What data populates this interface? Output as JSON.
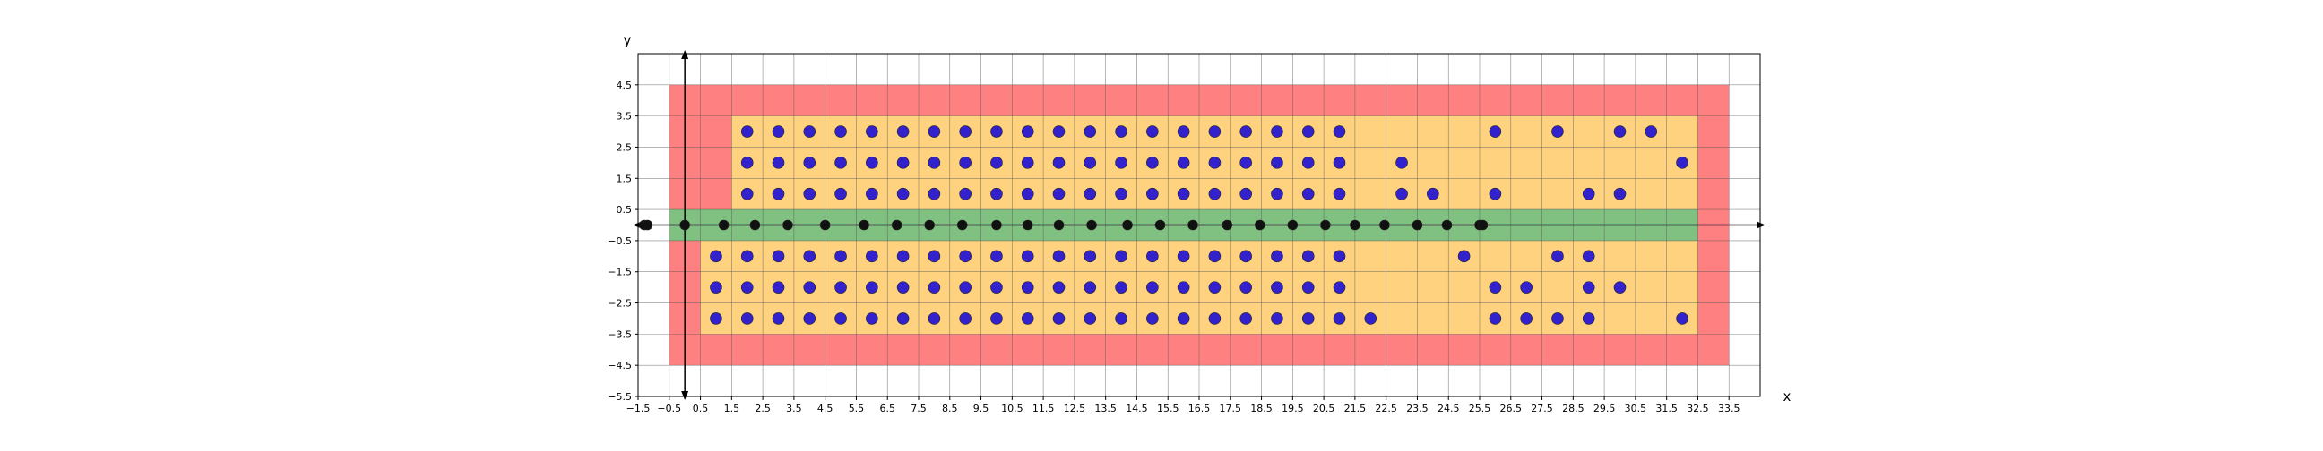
{
  "chart_data": {
    "type": "scatter",
    "title": "",
    "xlabel": "x",
    "ylabel": "y",
    "xlim": [
      -1.5,
      34.5
    ],
    "ylim": [
      -5.5,
      5.5
    ],
    "grid": true,
    "x_ticks": [
      "−1.5",
      "−0.5",
      "0.5",
      "1.5",
      "2.5",
      "3.5",
      "4.5",
      "5.5",
      "6.5",
      "7.5",
      "8.5",
      "9.5",
      "10.5",
      "11.5",
      "12.5",
      "13.5",
      "14.5",
      "15.5",
      "16.5",
      "17.5",
      "18.5",
      "19.5",
      "20.5",
      "21.5",
      "22.5",
      "23.5",
      "24.5",
      "25.5",
      "26.5",
      "27.5",
      "28.5",
      "29.5",
      "30.5",
      "31.5",
      "32.5",
      "33.5"
    ],
    "y_ticks": [
      "4.5",
      "3.5",
      "2.5",
      "1.5",
      "0.5",
      "−0.5",
      "−1.5",
      "−2.5",
      "−3.5",
      "−4.5",
      "−5.5"
    ],
    "regions": [
      {
        "color": "#ff8080",
        "x": [
          -0.5,
          33.5
        ],
        "y": [
          -4.5,
          4.5
        ]
      },
      {
        "color": "#ffd280",
        "x": [
          1.5,
          32.5
        ],
        "y": [
          0.5,
          3.5
        ]
      },
      {
        "color": "#ffd280",
        "x": [
          0.5,
          32.5
        ],
        "y": [
          -3.5,
          -0.5
        ]
      },
      {
        "color": "#80c080",
        "x": [
          -0.5,
          32.5
        ],
        "y": [
          -0.5,
          0.5
        ]
      }
    ],
    "series": [
      {
        "color": "#3322cc",
        "points": [
          [
            2,
            3
          ],
          [
            3,
            3
          ],
          [
            4,
            3
          ],
          [
            5,
            3
          ],
          [
            6,
            3
          ],
          [
            7,
            3
          ],
          [
            8,
            3
          ],
          [
            9,
            3
          ],
          [
            10,
            3
          ],
          [
            11,
            3
          ],
          [
            12,
            3
          ],
          [
            13,
            3
          ],
          [
            14,
            3
          ],
          [
            15,
            3
          ],
          [
            16,
            3
          ],
          [
            17,
            3
          ],
          [
            18,
            3
          ],
          [
            19,
            3
          ],
          [
            20,
            3
          ],
          [
            21,
            3
          ],
          [
            26,
            3
          ],
          [
            28,
            3
          ],
          [
            30,
            3
          ],
          [
            31,
            3
          ],
          [
            2,
            2
          ],
          [
            3,
            2
          ],
          [
            4,
            2
          ],
          [
            5,
            2
          ],
          [
            6,
            2
          ],
          [
            7,
            2
          ],
          [
            8,
            2
          ],
          [
            9,
            2
          ],
          [
            10,
            2
          ],
          [
            11,
            2
          ],
          [
            12,
            2
          ],
          [
            13,
            2
          ],
          [
            14,
            2
          ],
          [
            15,
            2
          ],
          [
            16,
            2
          ],
          [
            17,
            2
          ],
          [
            18,
            2
          ],
          [
            19,
            2
          ],
          [
            20,
            2
          ],
          [
            21,
            2
          ],
          [
            23,
            2
          ],
          [
            32,
            2
          ],
          [
            2,
            1
          ],
          [
            3,
            1
          ],
          [
            4,
            1
          ],
          [
            5,
            1
          ],
          [
            6,
            1
          ],
          [
            7,
            1
          ],
          [
            8,
            1
          ],
          [
            9,
            1
          ],
          [
            10,
            1
          ],
          [
            11,
            1
          ],
          [
            12,
            1
          ],
          [
            13,
            1
          ],
          [
            14,
            1
          ],
          [
            15,
            1
          ],
          [
            16,
            1
          ],
          [
            17,
            1
          ],
          [
            18,
            1
          ],
          [
            19,
            1
          ],
          [
            20,
            1
          ],
          [
            21,
            1
          ],
          [
            23,
            1
          ],
          [
            24,
            1
          ],
          [
            26,
            1
          ],
          [
            29,
            1
          ],
          [
            30,
            1
          ],
          [
            1,
            -1
          ],
          [
            2,
            -1
          ],
          [
            3,
            -1
          ],
          [
            4,
            -1
          ],
          [
            5,
            -1
          ],
          [
            6,
            -1
          ],
          [
            7,
            -1
          ],
          [
            8,
            -1
          ],
          [
            9,
            -1
          ],
          [
            10,
            -1
          ],
          [
            11,
            -1
          ],
          [
            12,
            -1
          ],
          [
            13,
            -1
          ],
          [
            14,
            -1
          ],
          [
            15,
            -1
          ],
          [
            16,
            -1
          ],
          [
            17,
            -1
          ],
          [
            18,
            -1
          ],
          [
            19,
            -1
          ],
          [
            20,
            -1
          ],
          [
            21,
            -1
          ],
          [
            25,
            -1
          ],
          [
            28,
            -1
          ],
          [
            29,
            -1
          ],
          [
            1,
            -2
          ],
          [
            2,
            -2
          ],
          [
            3,
            -2
          ],
          [
            4,
            -2
          ],
          [
            5,
            -2
          ],
          [
            6,
            -2
          ],
          [
            7,
            -2
          ],
          [
            8,
            -2
          ],
          [
            9,
            -2
          ],
          [
            10,
            -2
          ],
          [
            11,
            -2
          ],
          [
            12,
            -2
          ],
          [
            13,
            -2
          ],
          [
            14,
            -2
          ],
          [
            15,
            -2
          ],
          [
            16,
            -2
          ],
          [
            17,
            -2
          ],
          [
            18,
            -2
          ],
          [
            19,
            -2
          ],
          [
            20,
            -2
          ],
          [
            21,
            -2
          ],
          [
            26,
            -2
          ],
          [
            27,
            -2
          ],
          [
            29,
            -2
          ],
          [
            30,
            -2
          ],
          [
            1,
            -3
          ],
          [
            2,
            -3
          ],
          [
            3,
            -3
          ],
          [
            4,
            -3
          ],
          [
            5,
            -3
          ],
          [
            6,
            -3
          ],
          [
            7,
            -3
          ],
          [
            8,
            -3
          ],
          [
            9,
            -3
          ],
          [
            10,
            -3
          ],
          [
            11,
            -3
          ],
          [
            12,
            -3
          ],
          [
            13,
            -3
          ],
          [
            14,
            -3
          ],
          [
            15,
            -3
          ],
          [
            16,
            -3
          ],
          [
            17,
            -3
          ],
          [
            18,
            -3
          ],
          [
            19,
            -3
          ],
          [
            20,
            -3
          ],
          [
            21,
            -3
          ],
          [
            22,
            -3
          ],
          [
            26,
            -3
          ],
          [
            27,
            -3
          ],
          [
            28,
            -3
          ],
          [
            29,
            -3
          ],
          [
            32,
            -3
          ]
        ]
      },
      {
        "color": "#111111",
        "points": [
          [
            -1.3,
            0
          ],
          [
            -1.2,
            0
          ],
          [
            0,
            0
          ],
          [
            1.25,
            0
          ],
          [
            2.25,
            0
          ],
          [
            3.3,
            0
          ],
          [
            4.5,
            0
          ],
          [
            5.75,
            0
          ],
          [
            6.8,
            0
          ],
          [
            7.85,
            0
          ],
          [
            8.9,
            0
          ],
          [
            10,
            0
          ],
          [
            11,
            0
          ],
          [
            12,
            0
          ],
          [
            13.05,
            0
          ],
          [
            14.2,
            0
          ],
          [
            15.25,
            0
          ],
          [
            16.3,
            0
          ],
          [
            17.4,
            0
          ],
          [
            18.45,
            0
          ],
          [
            19.5,
            0
          ],
          [
            20.55,
            0
          ],
          [
            21.5,
            0
          ],
          [
            22.45,
            0
          ],
          [
            23.5,
            0
          ],
          [
            24.45,
            0
          ],
          [
            25.5,
            0
          ],
          [
            25.6,
            0
          ]
        ]
      }
    ]
  }
}
